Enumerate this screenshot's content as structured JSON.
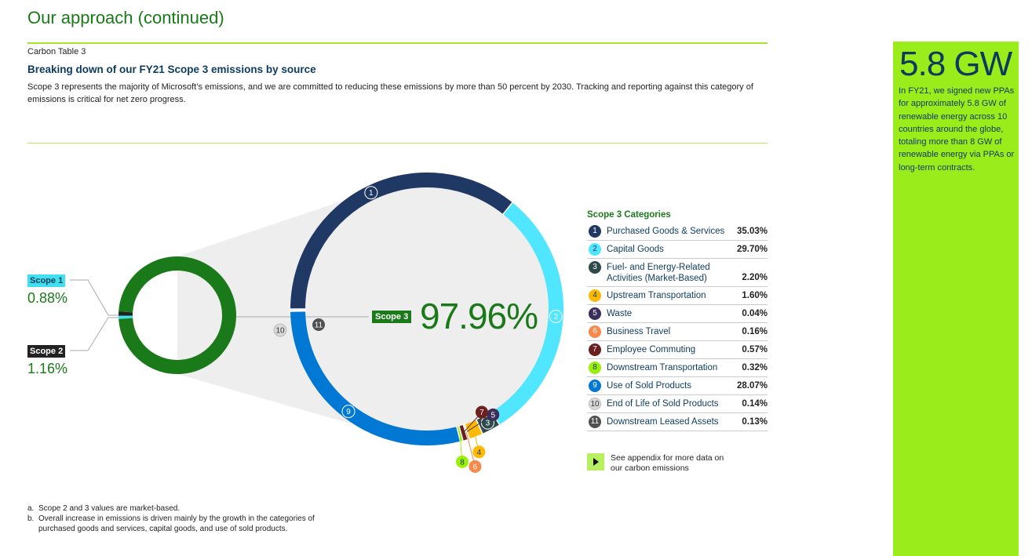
{
  "header": {
    "title": "Our approach (continued)",
    "table_label": "Carbon Table 3",
    "section_title": "Breaking down of our FY21 Scope 3 emissions by source",
    "intro": "Scope 3 represents the majority of Microsoft’s emissions, and we are committed to reducing these emissions by more than 50 percent by 2030. Tracking and reporting against this category of emissions is critical for net zero progress."
  },
  "scopes": {
    "scope1": {
      "label": "Scope 1",
      "value": "0.88%"
    },
    "scope2": {
      "label": "Scope 2",
      "value": "1.16%"
    },
    "scope3": {
      "label": "Scope 3",
      "value": "97.96%"
    }
  },
  "chart_data": {
    "type": "pie",
    "title": "",
    "overview": {
      "series": [
        {
          "name": "Scope 1",
          "value": 0.88,
          "color": "#40e0f0"
        },
        {
          "name": "Scope 2",
          "value": 1.16,
          "color": "#222222"
        },
        {
          "name": "Scope 3",
          "value": 97.96,
          "color": "#1a7a1a"
        }
      ]
    },
    "legend_title": "Scope 3 Categories",
    "categories": [
      {
        "num": "1",
        "name": "Purchased Goods & Services",
        "pct": "35.03%",
        "value": 35.03,
        "color": "#203864",
        "text_color": "#ffffff"
      },
      {
        "num": "2",
        "name": "Capital Goods",
        "pct": "29.70%",
        "value": 29.7,
        "color": "#50e6ff",
        "text_color": "#0d3b5e"
      },
      {
        "num": "3",
        "name": "Fuel- and Energy-Related Activities (Market-Based)",
        "pct": "2.20%",
        "value": 2.2,
        "color": "#2e4a4a",
        "text_color": "#ffffff"
      },
      {
        "num": "4",
        "name": "Upstream Transportation",
        "pct": "1.60%",
        "value": 1.6,
        "color": "#ffb900",
        "text_color": "#0d3b5e"
      },
      {
        "num": "5",
        "name": "Waste",
        "pct": "0.04%",
        "value": 0.04,
        "color": "#3b2e5a",
        "text_color": "#ffffff"
      },
      {
        "num": "6",
        "name": "Business Travel",
        "pct": "0.16%",
        "value": 0.16,
        "color": "#f7894a",
        "text_color": "#ffffff"
      },
      {
        "num": "7",
        "name": "Employee Commuting",
        "pct": "0.57%",
        "value": 0.57,
        "color": "#6b1f1f",
        "text_color": "#ffffff"
      },
      {
        "num": "8",
        "name": "Downstream Transportation",
        "pct": "0.32%",
        "value": 0.32,
        "color": "#9bf00b",
        "text_color": "#0d3b5e"
      },
      {
        "num": "9",
        "name": "Use of Sold Products",
        "pct": "28.07%",
        "value": 28.07,
        "color": "#0078d4",
        "text_color": "#ffffff"
      },
      {
        "num": "10",
        "name": "End of Life of Sold Products",
        "pct": "0.14%",
        "value": 0.14,
        "color": "#d9d9d9",
        "text_color": "#333333"
      },
      {
        "num": "11",
        "name": "Downstream Leased Assets",
        "pct": "0.13%",
        "value": 0.13,
        "color": "#505050",
        "text_color": "#ffffff"
      }
    ]
  },
  "appendix": {
    "text": "See appendix for more data on our carbon emissions"
  },
  "footnotes": [
    {
      "mark": "a.",
      "text": "Scope 2 and 3 values are market-based."
    },
    {
      "mark": "b.",
      "text": "Overall increase in emissions is driven mainly by the growth in the categories of purchased goods and services, capital goods, and use of sold products."
    }
  ],
  "sidebar": {
    "stat": "5.8 GW",
    "text": "In FY21, we signed new PPAs for approximately 5.8 GW of renewable energy across 10 countries around the globe, totaling more than 8 GW of renewable energy via PPAs or long-term contracts."
  },
  "colors": {
    "brand_green": "#1a7a1a",
    "accent_lime": "#9aec1a",
    "navy": "#0d3b5e"
  }
}
